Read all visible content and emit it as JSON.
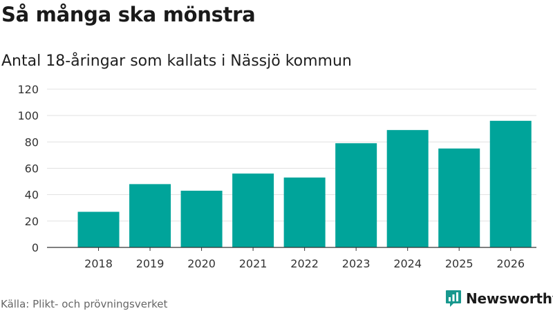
{
  "title": "Så många ska mönstra",
  "subtitle": "Antal 18-åringar som kallats i Nässjö kommun",
  "source": "Källa: Plikt- och prövningsverket",
  "brand": {
    "name": "Newsworthy",
    "icon": "bar-chart-logo-icon"
  },
  "colors": {
    "bar": "#00a49a",
    "brand": "#18988e",
    "grid": "#e1e1e1",
    "axis": "#333333"
  },
  "chart_data": {
    "type": "bar",
    "categories": [
      "2018",
      "2019",
      "2020",
      "2021",
      "2022",
      "2023",
      "2024",
      "2025",
      "2026"
    ],
    "values": [
      27,
      48,
      43,
      56,
      53,
      79,
      89,
      75,
      96
    ],
    "y_ticks": [
      "0",
      "20",
      "40",
      "60",
      "80",
      "100",
      "120"
    ],
    "ylim": [
      0,
      120
    ],
    "xlabel": "",
    "ylabel": "",
    "grid": true,
    "legend": "none"
  }
}
